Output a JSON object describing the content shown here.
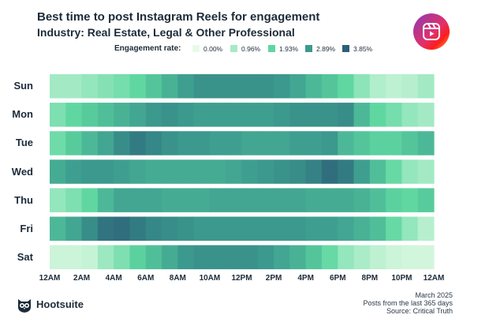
{
  "title": "Best time to post Instagram Reels for engagement",
  "subtitle": "Industry: Real Estate, Legal & Other Professional",
  "icon": "instagram-reels-icon",
  "legend": {
    "title": "Engagement rate:",
    "items": [
      {
        "label": "0.00%",
        "color": "#e6fbe6"
      },
      {
        "label": "0.96%",
        "color": "#a6ebc5"
      },
      {
        "label": "1.93%",
        "color": "#5ed6a0"
      },
      {
        "label": "2.89%",
        "color": "#3b9a8e"
      },
      {
        "label": "3.85%",
        "color": "#2c5f78"
      }
    ]
  },
  "footer": {
    "date": "March 2025",
    "period": "Posts from the last 365 days",
    "source": "Source: Critical Truth",
    "brand": "Hootsuite"
  },
  "chart_data": {
    "type": "heatmap",
    "title": "Best time to post Instagram Reels for engagement",
    "subtitle": "Industry: Real Estate, Legal & Other Professional",
    "value_unit": "engagement rate (%)",
    "scale_range": [
      0.0,
      3.85
    ],
    "x_tick_labels": [
      "12AM",
      "2AM",
      "4AM",
      "6AM",
      "8AM",
      "10AM",
      "12PM",
      "2PM",
      "4PM",
      "6PM",
      "8PM",
      "10PM",
      "12AM"
    ],
    "columns": 24,
    "rows": [
      {
        "day": "Sun",
        "values": [
          1.0,
          1.0,
          1.2,
          1.4,
          1.6,
          1.9,
          2.2,
          2.5,
          2.8,
          3.0,
          3.0,
          3.0,
          3.0,
          3.0,
          2.9,
          2.7,
          2.4,
          2.2,
          1.9,
          1.3,
          0.8,
          0.6,
          0.7,
          1.0
        ]
      },
      {
        "day": "Mon",
        "values": [
          1.5,
          1.9,
          2.1,
          2.3,
          2.5,
          2.7,
          2.9,
          3.0,
          2.9,
          2.8,
          2.8,
          2.8,
          2.8,
          2.8,
          2.9,
          3.0,
          3.0,
          3.0,
          3.1,
          2.4,
          1.9,
          1.6,
          1.2,
          1.0
        ]
      },
      {
        "day": "Tue",
        "values": [
          1.7,
          2.1,
          2.4,
          2.7,
          3.1,
          3.4,
          3.2,
          3.0,
          2.9,
          2.9,
          2.8,
          2.8,
          2.7,
          2.7,
          2.7,
          2.8,
          2.8,
          2.9,
          2.4,
          2.2,
          2.0,
          2.0,
          2.2,
          2.4
        ]
      },
      {
        "day": "Wed",
        "values": [
          2.6,
          2.8,
          2.9,
          2.9,
          2.8,
          2.7,
          2.6,
          2.6,
          2.6,
          2.6,
          2.6,
          2.7,
          2.8,
          2.9,
          3.0,
          3.1,
          3.3,
          3.6,
          3.4,
          2.8,
          2.3,
          1.8,
          1.2,
          1.0
        ]
      },
      {
        "day": "Thu",
        "values": [
          1.2,
          1.5,
          1.9,
          2.4,
          2.7,
          2.7,
          2.7,
          2.6,
          2.6,
          2.6,
          2.7,
          2.7,
          2.7,
          2.7,
          2.7,
          2.7,
          2.6,
          2.6,
          2.6,
          2.5,
          2.3,
          2.0,
          1.9,
          2.1
        ]
      },
      {
        "day": "Fri",
        "values": [
          2.4,
          2.7,
          3.1,
          3.5,
          3.6,
          3.4,
          3.2,
          3.1,
          3.0,
          2.9,
          2.9,
          2.9,
          2.9,
          2.9,
          2.9,
          2.9,
          2.8,
          2.8,
          2.7,
          2.5,
          2.3,
          1.8,
          1.2,
          0.7
        ]
      },
      {
        "day": "Sat",
        "values": [
          0.4,
          0.4,
          0.5,
          1.1,
          1.5,
          2.0,
          2.3,
          2.6,
          2.9,
          3.0,
          3.0,
          3.0,
          3.0,
          2.9,
          2.7,
          2.5,
          2.2,
          1.8,
          1.2,
          0.9,
          0.6,
          0.4,
          0.3,
          0.3
        ]
      }
    ]
  }
}
